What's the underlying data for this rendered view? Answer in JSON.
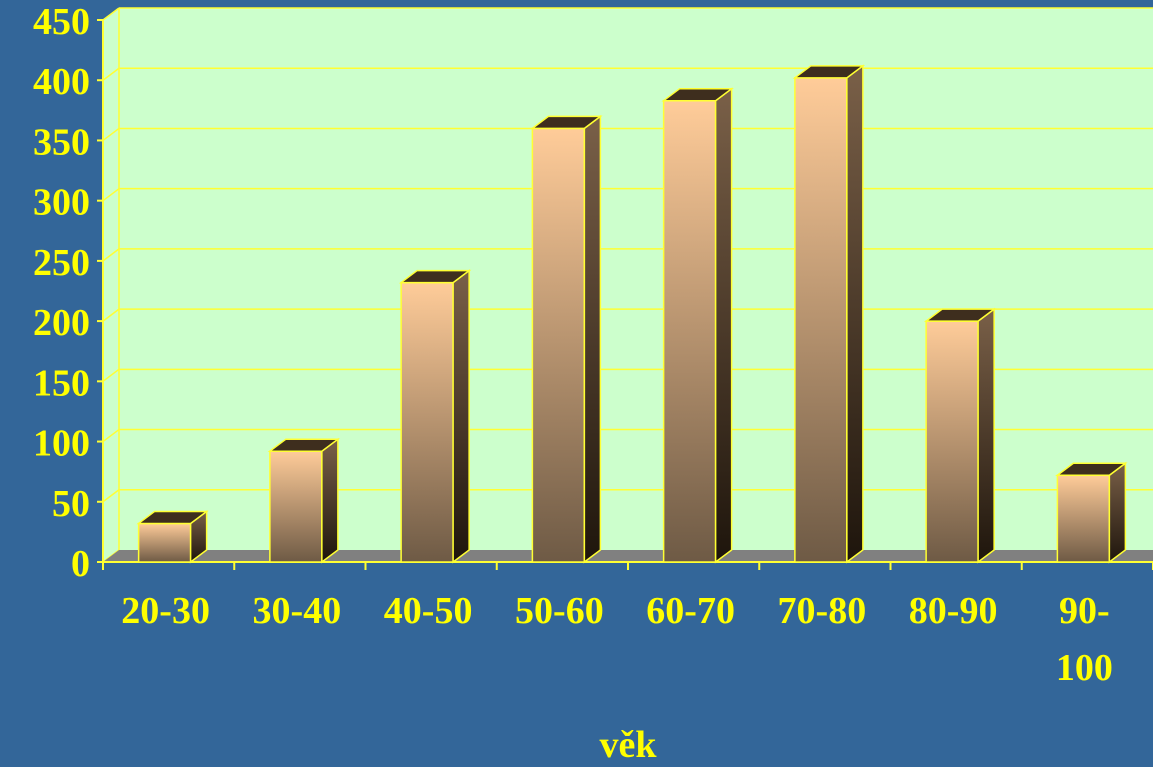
{
  "colors": {
    "background": "#336699",
    "plot_background": "#CCFFCC",
    "gridline": "#FFFF33",
    "floor": "#808080",
    "bar_light": "#FFCC99",
    "bar_dark": "#6E5A45",
    "bar_outline": "#FFFF33",
    "text": "#FFFF00"
  },
  "chart_data": {
    "type": "bar",
    "title": "",
    "xlabel": "věk",
    "ylabel": "",
    "categories": [
      "20-30",
      "30-40",
      "40-50",
      "50-60",
      "60-70",
      "70-80",
      "80-90",
      "90-100"
    ],
    "category_labels": [
      [
        "20-30"
      ],
      [
        "30-40"
      ],
      [
        "40-50"
      ],
      [
        "50-60"
      ],
      [
        "60-70"
      ],
      [
        "70-80"
      ],
      [
        "80-90"
      ],
      [
        "90-",
        "100"
      ]
    ],
    "values": [
      32,
      92,
      232,
      360,
      383,
      402,
      200,
      72
    ],
    "ylim": [
      0,
      450
    ],
    "y_ticks": [
      0,
      50,
      100,
      150,
      200,
      250,
      300,
      350,
      400,
      450
    ],
    "grid": true,
    "legend": "none",
    "style": "3d-column"
  }
}
